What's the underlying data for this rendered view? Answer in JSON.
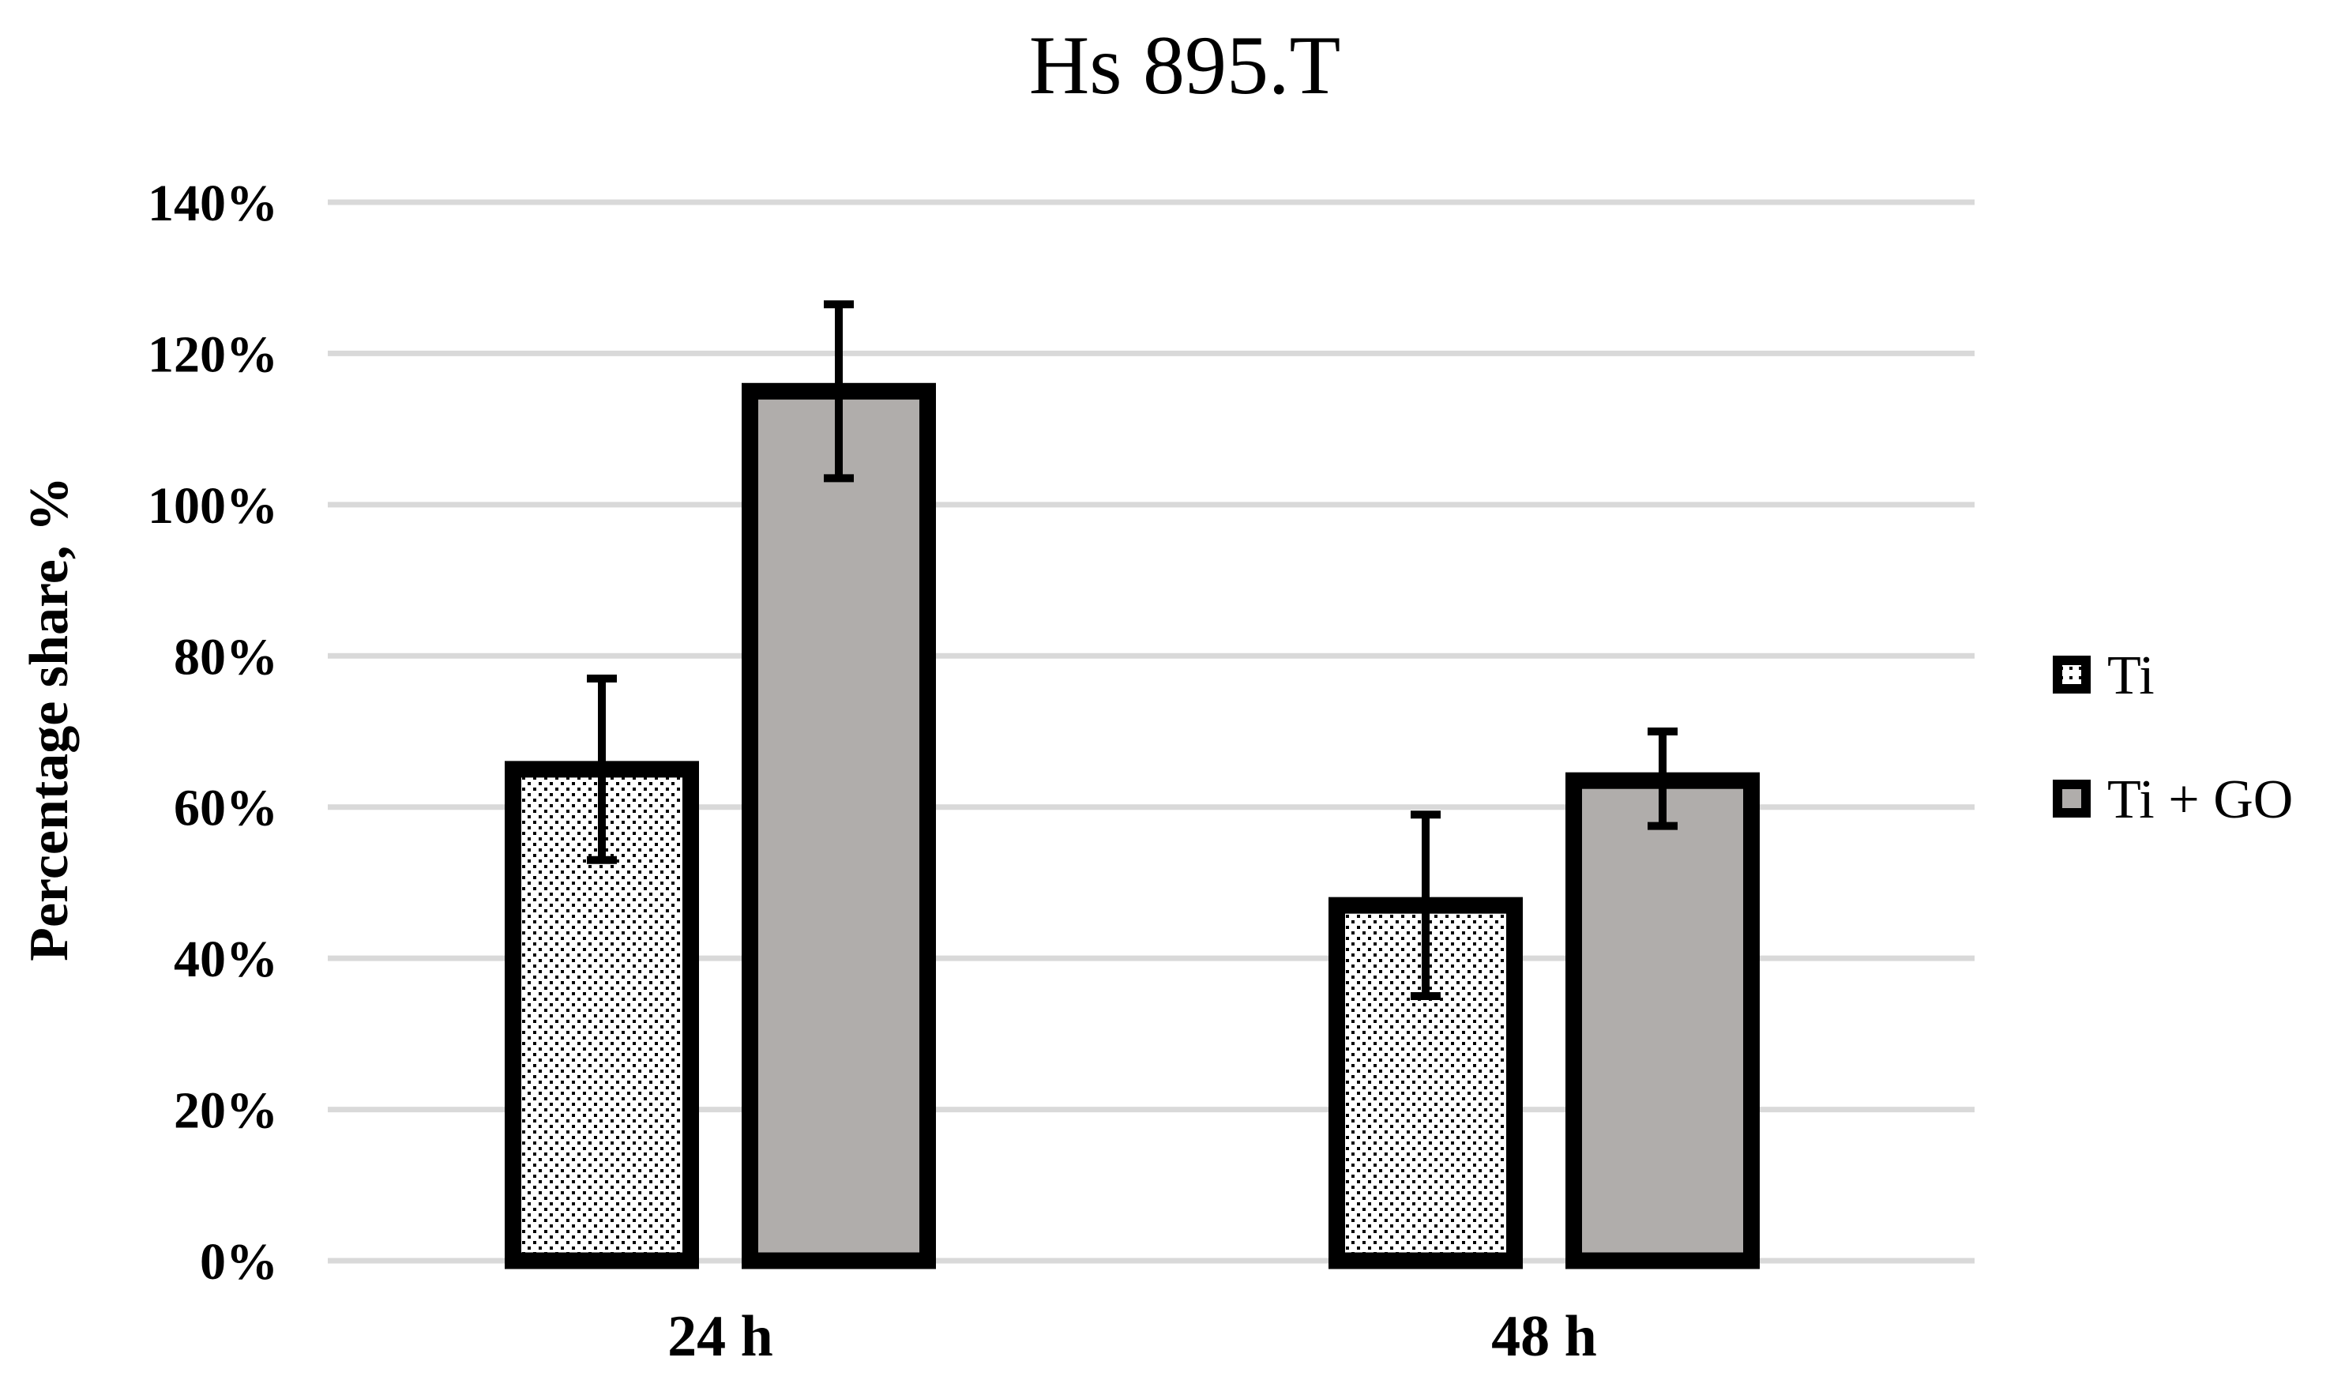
{
  "chart_data": {
    "type": "bar",
    "title": "Hs 895.T",
    "xlabel": "",
    "ylabel": "Percentage share, %",
    "ylim": [
      0,
      1.4
    ],
    "yticks": [
      0,
      0.2,
      0.4,
      0.6,
      0.8,
      1.0,
      1.2,
      1.4
    ],
    "ytick_labels": [
      "0%",
      "20%",
      "40%",
      "60%",
      "80%",
      "100%",
      "120%",
      "140%"
    ],
    "categories": [
      "24 h",
      "48 h"
    ],
    "series": [
      {
        "name": "Ti",
        "values": [
          0.65,
          0.47
        ],
        "error": [
          [
            0.53,
            0.77
          ],
          [
            0.35,
            0.59
          ]
        ],
        "fill": "dotted-white"
      },
      {
        "name": "Ti + GO",
        "values": [
          1.15,
          0.635
        ],
        "error": [
          [
            1.035,
            1.265
          ],
          [
            0.575,
            0.7
          ]
        ],
        "fill": "#b0adab"
      }
    ],
    "grid": true,
    "legend_position": "right",
    "colors": {
      "bar_outline": "#000000",
      "ti_go_fill": "#b0adab",
      "ti_fill": "#ffffff",
      "gridline": "#d9d9d9"
    }
  }
}
